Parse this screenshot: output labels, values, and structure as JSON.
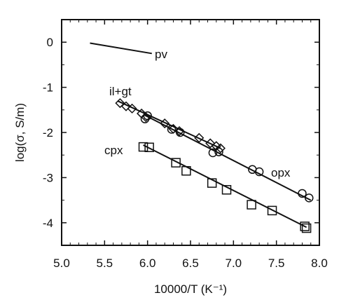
{
  "chart_data": {
    "type": "scatter",
    "xlabel": "10000/T (K⁻¹)",
    "ylabel": "log(σ, S/m)",
    "xlim": [
      5.0,
      8.0
    ],
    "ylim": [
      -4.5,
      0.5
    ],
    "x_ticks": [
      "5.0",
      "5.5",
      "6.0",
      "6.5",
      "7.0",
      "7.5",
      "8.0"
    ],
    "y_ticks": [
      "0",
      "-1",
      "-2",
      "-3",
      "-4"
    ],
    "grid": false,
    "series": [
      {
        "name": "pv",
        "marker": "none",
        "fit_line": [
          [
            5.33,
            -0.02
          ],
          [
            6.05,
            -0.25
          ]
        ],
        "points": []
      },
      {
        "name": "il+gt",
        "marker": "diamond",
        "fit_line": [
          [
            5.65,
            -1.3
          ],
          [
            6.85,
            -2.35
          ]
        ],
        "points": [
          [
            5.68,
            -1.35
          ],
          [
            5.75,
            -1.42
          ],
          [
            5.82,
            -1.47
          ],
          [
            5.93,
            -1.58
          ],
          [
            5.98,
            -1.66
          ],
          [
            6.2,
            -1.8
          ],
          [
            6.3,
            -1.92
          ],
          [
            6.37,
            -1.97
          ],
          [
            6.6,
            -2.12
          ],
          [
            6.73,
            -2.24
          ],
          [
            6.8,
            -2.3
          ],
          [
            6.85,
            -2.35
          ]
        ]
      },
      {
        "name": "opx",
        "marker": "circle",
        "fit_line": [
          [
            5.95,
            -1.6
          ],
          [
            7.9,
            -3.5
          ]
        ],
        "points": [
          [
            5.97,
            -1.7
          ],
          [
            6.0,
            -1.63
          ],
          [
            6.28,
            -1.93
          ],
          [
            6.38,
            -2.0
          ],
          [
            6.76,
            -2.45
          ],
          [
            6.83,
            -2.43
          ],
          [
            7.22,
            -2.82
          ],
          [
            7.3,
            -2.87
          ],
          [
            7.8,
            -3.35
          ],
          [
            7.88,
            -3.45
          ]
        ]
      },
      {
        "name": "cpx",
        "marker": "square",
        "fit_line": [
          [
            5.95,
            -2.28
          ],
          [
            7.85,
            -4.1
          ]
        ],
        "points": [
          [
            5.95,
            -2.32
          ],
          [
            6.02,
            -2.33
          ],
          [
            6.33,
            -2.67
          ],
          [
            6.45,
            -2.85
          ],
          [
            6.75,
            -3.12
          ],
          [
            6.92,
            -3.27
          ],
          [
            7.21,
            -3.6
          ],
          [
            7.45,
            -3.73
          ],
          [
            7.83,
            -4.08
          ],
          [
            7.85,
            -4.12
          ]
        ]
      }
    ]
  }
}
